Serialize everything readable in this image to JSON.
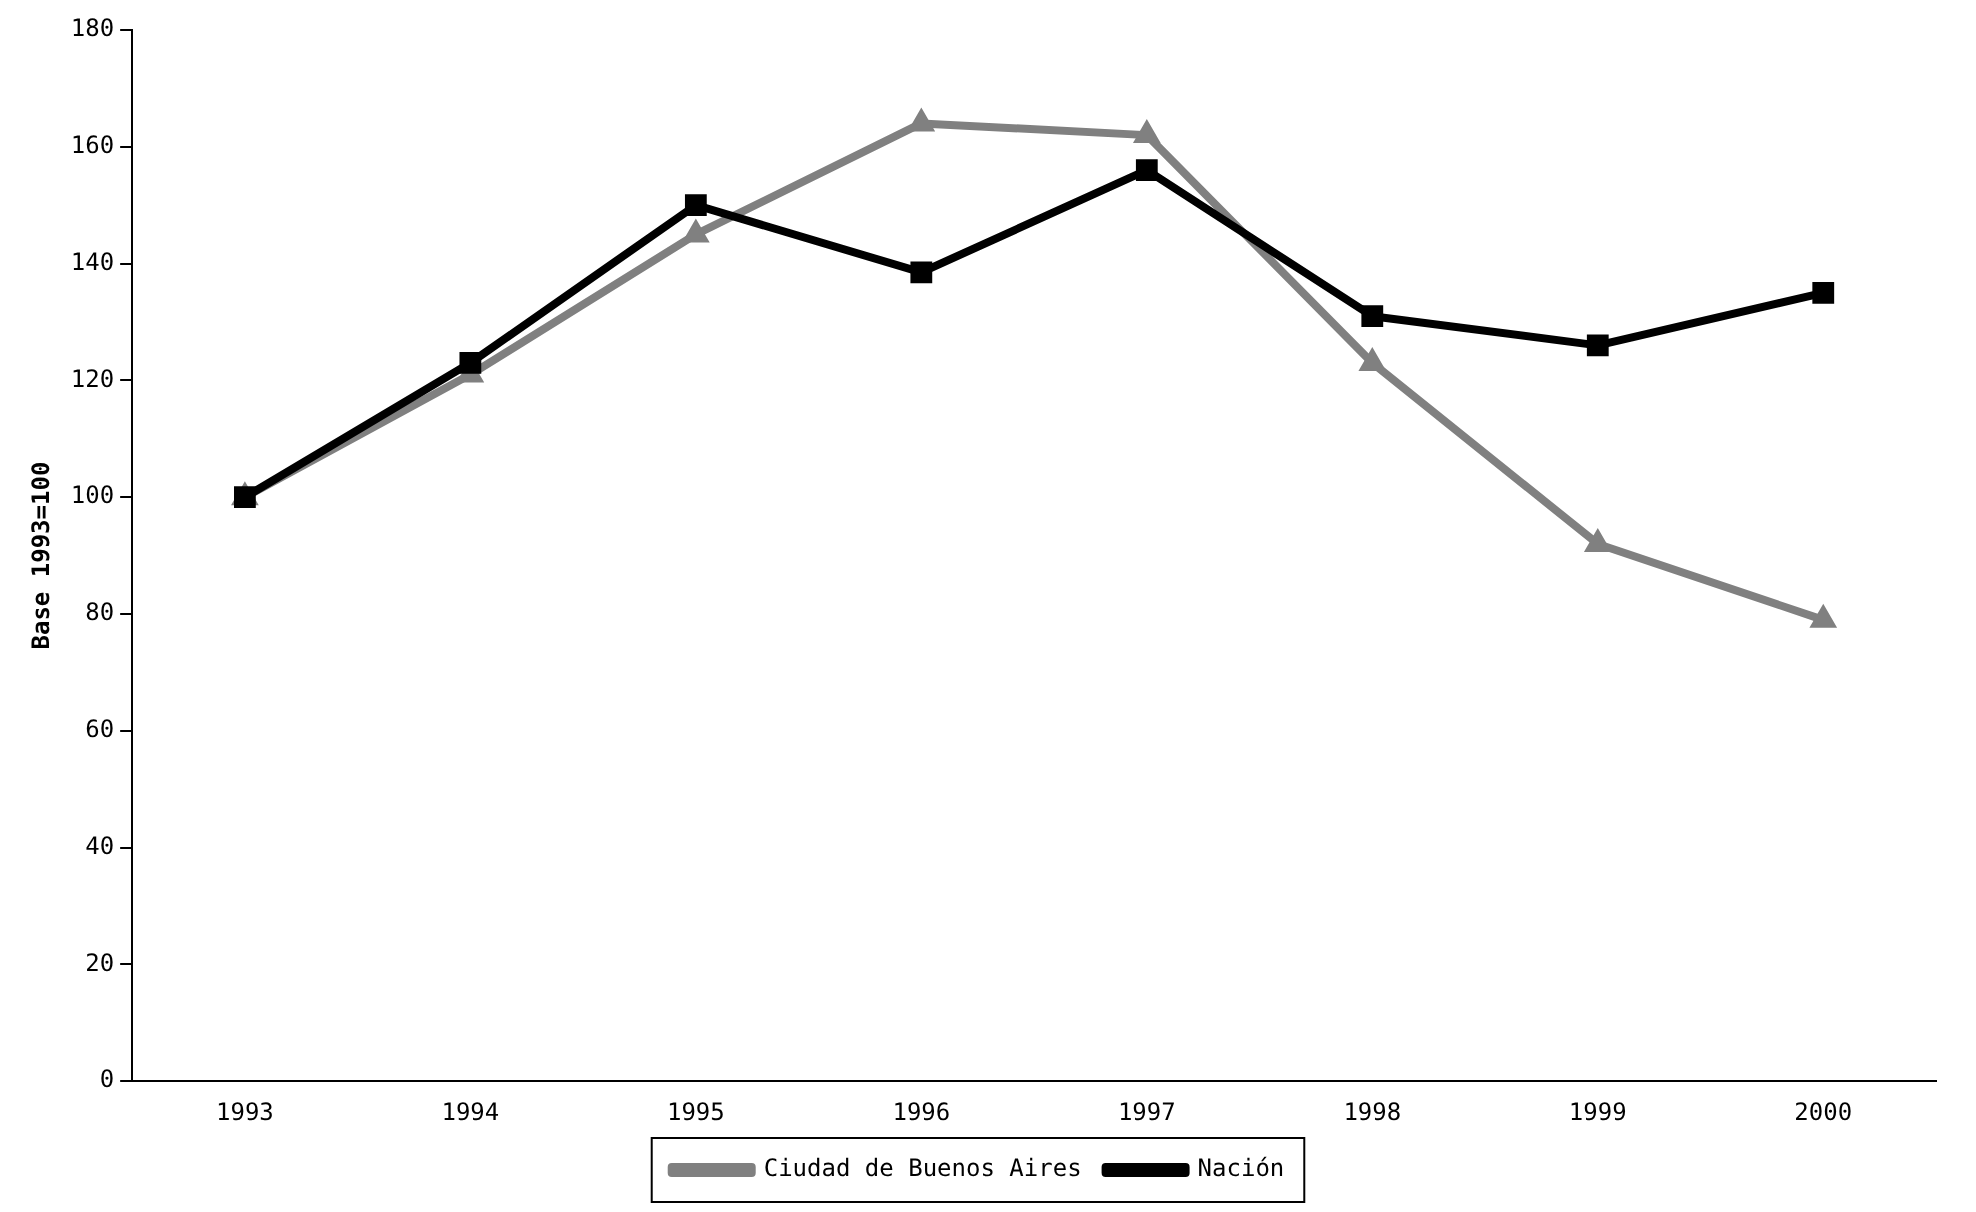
{
  "chart_data": {
    "type": "line",
    "ylabel": "Base 1993=100",
    "categories": [
      "1993",
      "1994",
      "1995",
      "1996",
      "1997",
      "1998",
      "1999",
      "2000"
    ],
    "ylim": [
      0,
      180
    ],
    "yticks": [
      0,
      20,
      40,
      60,
      80,
      100,
      120,
      140,
      160,
      180
    ],
    "grid": false,
    "legend": "bottom",
    "line_style": "solid",
    "series": [
      {
        "name": "Ciudad de Buenos Aires",
        "color": "#808080",
        "marker": "triangle",
        "values": [
          100,
          121,
          145,
          164,
          162,
          123,
          92,
          79
        ]
      },
      {
        "name": "Nación",
        "color": "#000000",
        "marker": "square",
        "values": [
          100,
          123,
          150,
          138.5,
          156,
          131,
          126,
          135
        ]
      }
    ]
  }
}
